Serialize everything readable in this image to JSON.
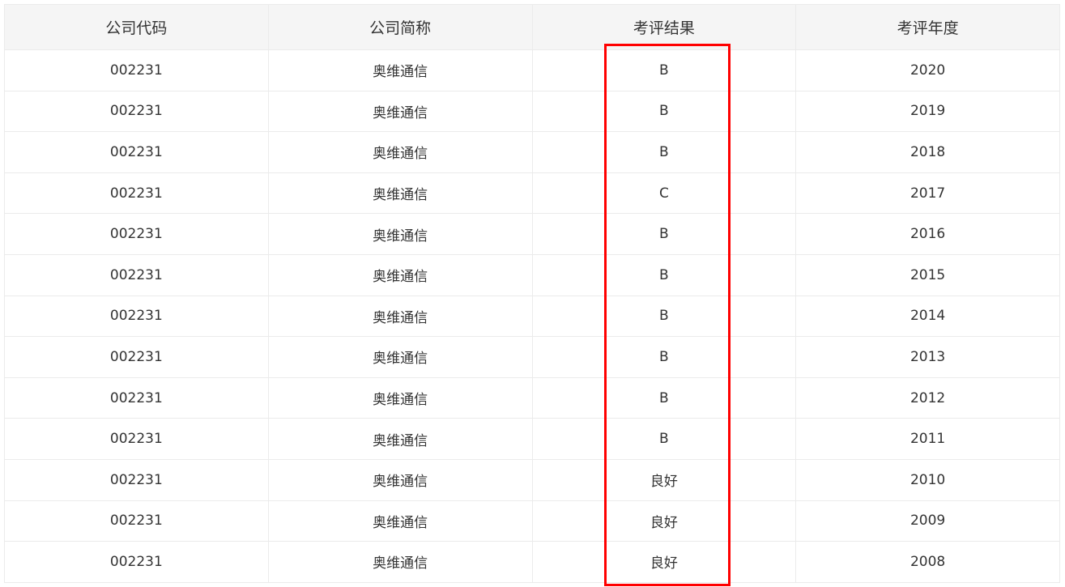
{
  "table": {
    "headers": [
      "公司代码",
      "公司简称",
      "考评结果",
      "考评年度"
    ],
    "rows": [
      [
        "002231",
        "奥维通信",
        "B",
        "2020"
      ],
      [
        "002231",
        "奥维通信",
        "B",
        "2019"
      ],
      [
        "002231",
        "奥维通信",
        "B",
        "2018"
      ],
      [
        "002231",
        "奥维通信",
        "C",
        "2017"
      ],
      [
        "002231",
        "奥维通信",
        "B",
        "2016"
      ],
      [
        "002231",
        "奥维通信",
        "B",
        "2015"
      ],
      [
        "002231",
        "奥维通信",
        "B",
        "2014"
      ],
      [
        "002231",
        "奥维通信",
        "B",
        "2013"
      ],
      [
        "002231",
        "奥维通信",
        "B",
        "2012"
      ],
      [
        "002231",
        "奥维通信",
        "B",
        "2011"
      ],
      [
        "002231",
        "奥维通信",
        "良好",
        "2010"
      ],
      [
        "002231",
        "奥维通信",
        "良好",
        "2009"
      ],
      [
        "002231",
        "奥维通信",
        "良好",
        "2008"
      ]
    ]
  },
  "highlight": {
    "column": "考评结果",
    "color": "#ff0000"
  }
}
